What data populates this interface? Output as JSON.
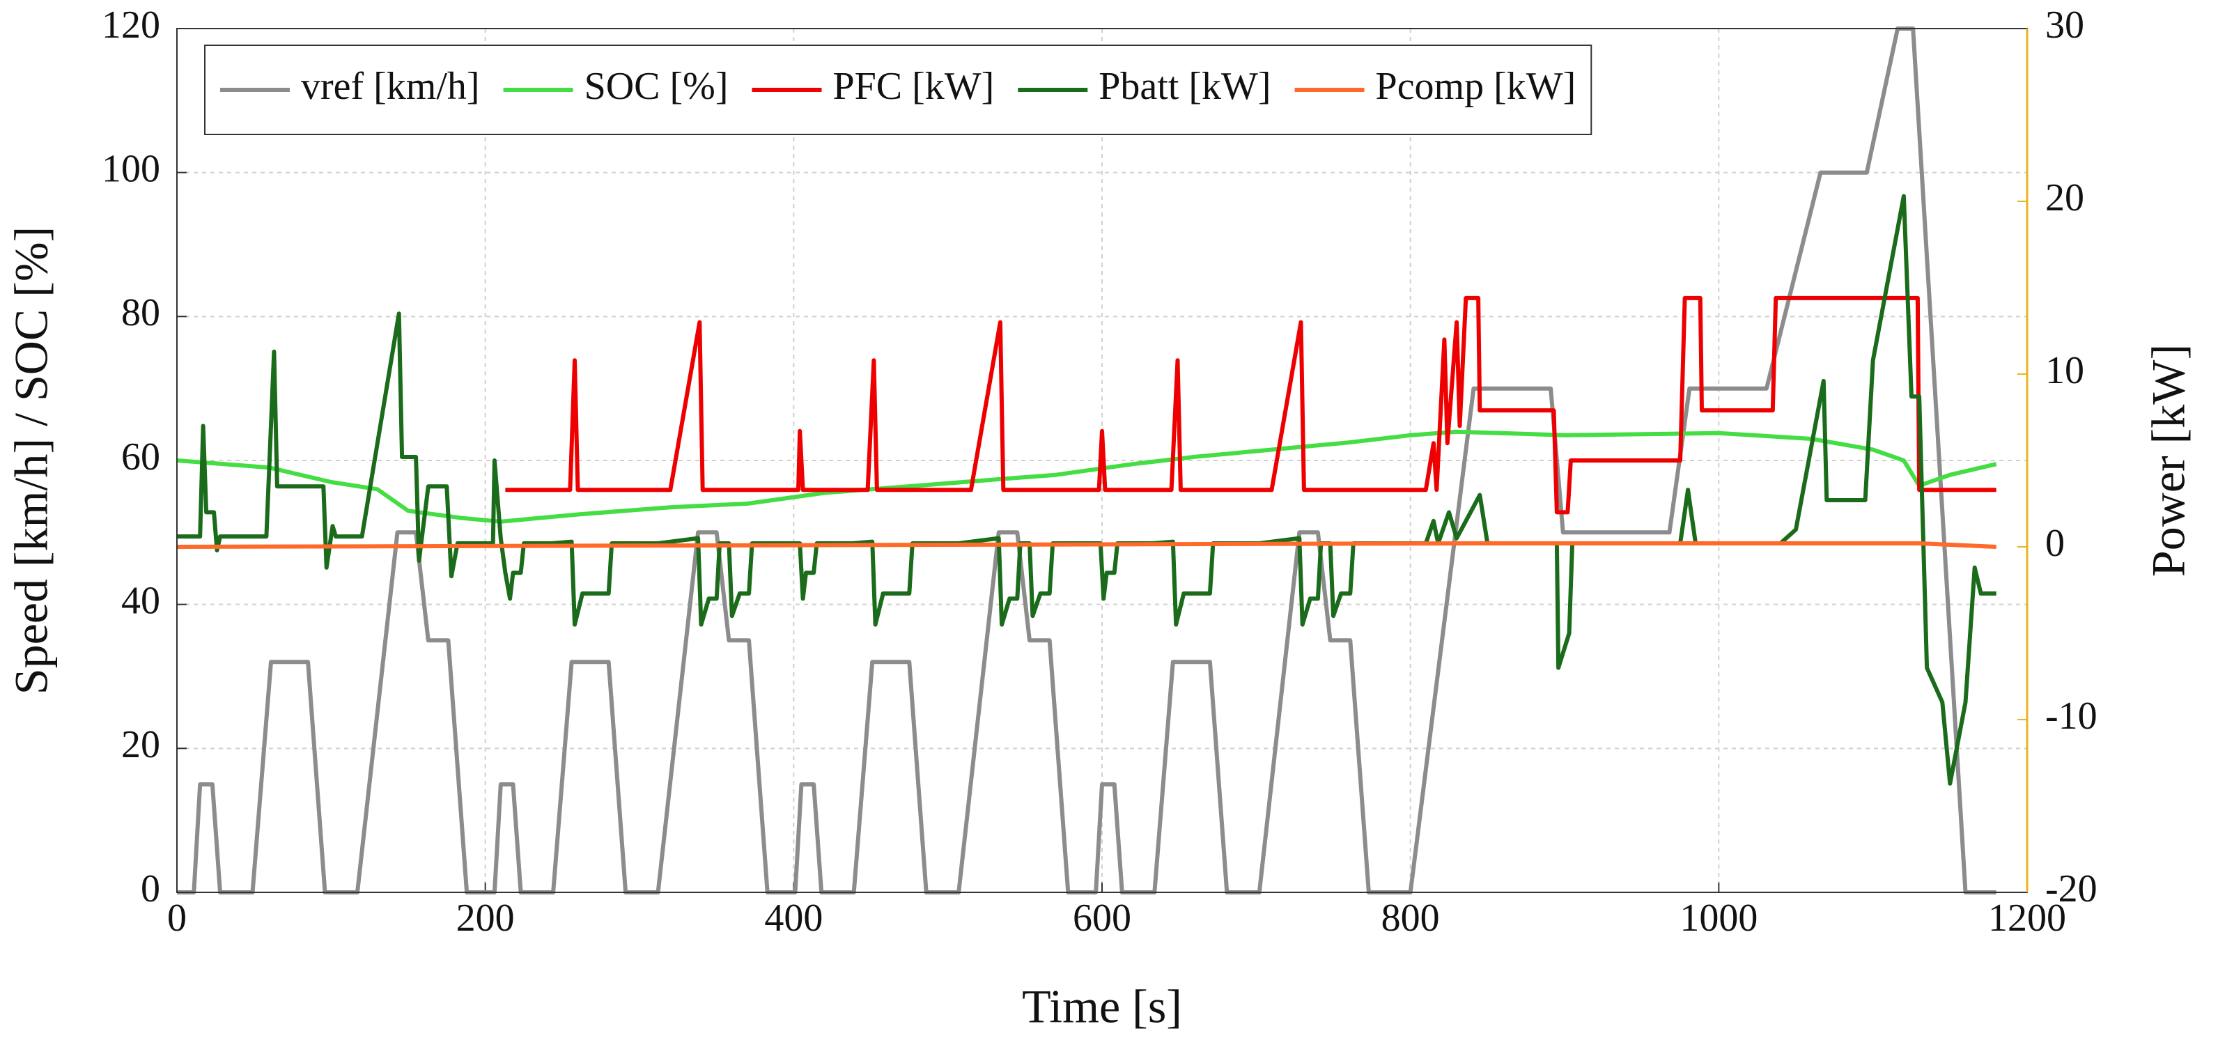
{
  "chart_data": {
    "type": "line",
    "x_label": "Time [s]",
    "y_label": "Speed [km/h] / SOC [%]",
    "y2_label": "Power [kW]",
    "xlim": [
      0,
      1200
    ],
    "xticks": [
      0,
      200,
      400,
      600,
      800,
      1000,
      1200
    ],
    "ylim": [
      0,
      120
    ],
    "yticks": [
      0,
      20,
      40,
      60,
      80,
      100,
      120
    ],
    "y2lim": [
      -20,
      30
    ],
    "y2ticks": [
      -20,
      -10,
      0,
      10,
      20,
      30
    ],
    "y2_color": "#e8b420",
    "grid": true,
    "legend": "upper left",
    "series": [
      {
        "name": "vref [km/h]",
        "color": "#8c8c8c",
        "x": [
          0,
          11,
          15,
          23,
          28,
          49,
          61,
          85,
          96,
          117,
          143,
          155,
          163,
          176,
          188,
          195,
          206,
          210,
          218,
          223,
          244,
          256,
          280,
          291,
          312,
          338,
          350,
          358,
          371,
          383,
          390,
          401,
          405,
          413,
          418,
          439,
          451,
          475,
          486,
          507,
          533,
          545,
          553,
          566,
          578,
          585,
          596,
          600,
          608,
          613,
          634,
          646,
          670,
          681,
          702,
          728,
          740,
          748,
          761,
          773,
          800,
          841,
          891,
          899,
          968,
          981,
          1031,
          1066,
          1096,
          1116,
          1126,
          1160,
          1180
        ],
        "values": [
          0,
          0,
          15,
          15,
          0,
          0,
          32,
          32,
          0,
          0,
          50,
          50,
          35,
          35,
          0,
          0,
          0,
          15,
          15,
          0,
          0,
          32,
          32,
          0,
          0,
          50,
          50,
          35,
          35,
          0,
          0,
          0,
          15,
          15,
          0,
          0,
          32,
          32,
          0,
          0,
          50,
          50,
          35,
          35,
          0,
          0,
          0,
          15,
          15,
          0,
          0,
          32,
          32,
          0,
          0,
          50,
          50,
          35,
          35,
          0,
          0,
          70,
          70,
          50,
          50,
          70,
          70,
          100,
          100,
          120,
          120,
          0,
          0
        ]
      },
      {
        "name": "SOC [%]",
        "color": "#44dd44",
        "x": [
          0,
          60,
          100,
          130,
          150,
          185,
          210,
          260,
          320,
          370,
          420,
          480,
          540,
          570,
          620,
          660,
          710,
          760,
          800,
          830,
          900,
          1000,
          1060,
          1100,
          1120,
          1130,
          1150,
          1180
        ],
        "values": [
          60,
          59,
          57,
          56,
          53,
          52,
          51.5,
          52.5,
          53.5,
          54,
          55.5,
          56.5,
          57.5,
          58,
          59.5,
          60.5,
          61.5,
          62.5,
          63.5,
          64,
          63.5,
          63.8,
          63,
          61.5,
          60,
          56.5,
          58,
          59.5
        ]
      },
      {
        "name": "PFC [kW]",
        "color": "#ee0000",
        "axis": "y2",
        "x": [
          213,
          255,
          258,
          260,
          320,
          339,
          341,
          403,
          404,
          406,
          448,
          452,
          454,
          515,
          534,
          536,
          598,
          600,
          602,
          645,
          649,
          651,
          710,
          729,
          731,
          810,
          815,
          817,
          822,
          824,
          830,
          832,
          836,
          844,
          845,
          893,
          895,
          902,
          904,
          975,
          978,
          988,
          989,
          1035,
          1037,
          1129,
          1130,
          1180
        ],
        "values": [
          3.3,
          3.3,
          10.8,
          3.3,
          3.3,
          13,
          3.3,
          3.3,
          6.7,
          3.3,
          3.3,
          10.8,
          3.3,
          3.3,
          13,
          3.3,
          3.3,
          6.7,
          3.3,
          3.3,
          10.8,
          3.3,
          3.3,
          13,
          3.3,
          3.3,
          6,
          3.3,
          12,
          6,
          13,
          7,
          14.4,
          14.4,
          7.9,
          7.9,
          2,
          2,
          5,
          5,
          14.4,
          14.4,
          7.9,
          7.9,
          14.4,
          14.4,
          3.3,
          3.3
        ]
      },
      {
        "name": "Pbatt [kW]",
        "color": "#1a6b1a",
        "axis": "y2",
        "x": [
          0,
          15,
          17,
          19,
          24,
          26,
          28,
          58,
          63,
          65,
          95,
          97,
          101,
          103,
          120,
          144,
          146,
          155,
          157,
          163,
          175,
          178,
          182,
          205,
          206,
          210,
          213,
          216,
          218,
          223,
          225,
          243,
          256,
          258,
          263,
          280,
          282,
          312,
          338,
          340,
          345,
          350,
          352,
          358,
          360,
          365,
          371,
          373,
          404,
          406,
          408,
          413,
          415,
          438,
          451,
          453,
          458,
          475,
          477,
          507,
          533,
          535,
          540,
          545,
          547,
          553,
          555,
          560,
          566,
          568,
          599,
          601,
          603,
          608,
          610,
          633,
          646,
          648,
          653,
          670,
          672,
          702,
          728,
          730,
          735,
          740,
          742,
          748,
          750,
          755,
          761,
          763,
          810,
          815,
          818,
          825,
          830,
          845,
          850,
          895,
          896,
          903,
          905,
          975,
          980,
          985,
          1040,
          1050,
          1068,
          1070,
          1095,
          1100,
          1120,
          1125,
          1130,
          1135,
          1145,
          1150,
          1160,
          1166,
          1170,
          1180
        ],
        "values": [
          0.6,
          0.6,
          7,
          2,
          2,
          -0.2,
          0.6,
          0.6,
          11.3,
          3.5,
          3.5,
          -1.2,
          1.2,
          0.6,
          0.6,
          13.5,
          5.2,
          5.2,
          -0.8,
          3.5,
          3.5,
          -1.7,
          0.2,
          0.2,
          5,
          0.5,
          -1.5,
          -3,
          -1.5,
          -1.5,
          0.2,
          0.2,
          0.3,
          -4.5,
          -2.7,
          -2.7,
          0.2,
          0.2,
          0.5,
          -4.5,
          -3,
          -3,
          0.2,
          0.2,
          -4,
          -2.7,
          -2.7,
          0.2,
          0.2,
          -3,
          -1.5,
          -1.5,
          0.2,
          0.2,
          0.3,
          -4.5,
          -2.7,
          -2.7,
          0.2,
          0.2,
          0.5,
          -4.5,
          -3,
          -3,
          0.2,
          0.2,
          -4,
          -2.7,
          -2.7,
          0.2,
          0.2,
          -3,
          -1.5,
          -1.5,
          0.2,
          0.2,
          0.3,
          -4.5,
          -2.7,
          -2.7,
          0.2,
          0.2,
          0.5,
          -4.5,
          -3,
          -3,
          0.2,
          0.2,
          -4,
          -2.7,
          -2.7,
          0.2,
          0.2,
          1.5,
          0.2,
          2,
          0.5,
          3,
          0.2,
          0.2,
          -7,
          -5,
          0.2,
          0.2,
          3.3,
          0.2,
          0.2,
          1,
          9.6,
          2.7,
          2.7,
          10.8,
          20.3,
          8.7,
          8.7,
          -7,
          -9,
          -13.7,
          -9,
          -1.2,
          -2.7,
          -2.7
        ]
      },
      {
        "name": "Pcomp [kW]",
        "color": "#ff6a2a",
        "axis": "y2",
        "x": [
          0,
          840,
          1130,
          1180
        ],
        "values": [
          0,
          0.2,
          0.2,
          0
        ]
      }
    ]
  }
}
